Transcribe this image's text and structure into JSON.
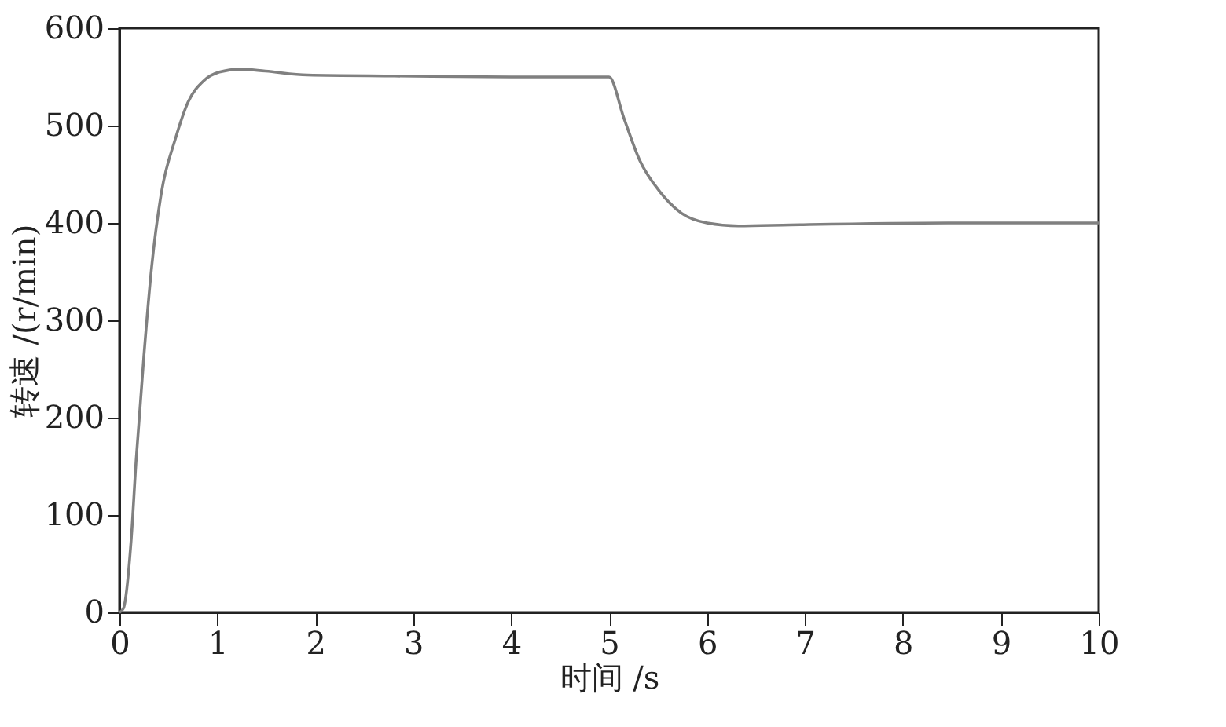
{
  "chart_data": {
    "type": "line",
    "xlabel": "时间 /s",
    "ylabel": "转速 /(r/min)",
    "xlim": [
      0,
      10
    ],
    "ylim": [
      0,
      600
    ],
    "xticks": [
      0,
      1,
      2,
      3,
      4,
      5,
      6,
      7,
      8,
      9,
      10
    ],
    "yticks": [
      0,
      100,
      200,
      300,
      400,
      500,
      600
    ],
    "grid": false,
    "marker": "none",
    "line_style": "solid",
    "series": [
      {
        "color": "#808080",
        "x": [
          0,
          0.04,
          0.12,
          0.17,
          0.25,
          0.33,
          0.43,
          0.57,
          0.7,
          0.86,
          1.02,
          1.23,
          1.49,
          1.92,
          2.81,
          4,
          5.0,
          5.15,
          5.31,
          5.52,
          5.74,
          6.0,
          6.32,
          6.85,
          8.46,
          10
        ],
        "values": [
          0,
          4,
          75,
          156,
          264,
          356,
          432,
          486,
          524,
          546,
          555,
          558,
          556,
          552,
          551,
          550,
          550,
          508,
          465,
          432,
          410,
          400,
          397,
          398,
          400,
          400
        ]
      }
    ]
  }
}
